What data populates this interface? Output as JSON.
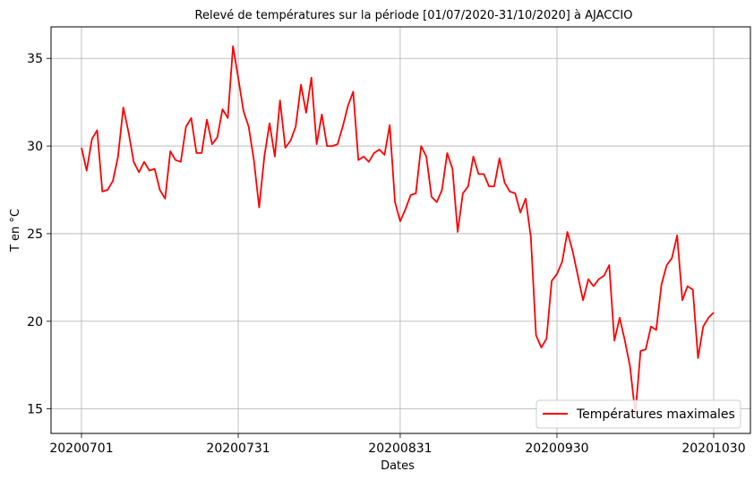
{
  "chart_data": {
    "type": "line",
    "title": "Relevé de températures sur la période [01/07/2020-31/10/2020] à AJACCIO",
    "xlabel": "Dates",
    "ylabel": "T en °C",
    "x_ticks": [
      "20200701",
      "20200731",
      "20200831",
      "20200930",
      "20201030"
    ],
    "y_ticks": [
      15,
      20,
      25,
      30,
      35
    ],
    "ylim": [
      13.6,
      36.8
    ],
    "grid": true,
    "legend_position": "bottom-right",
    "color": "#ff0000",
    "series": [
      {
        "name": "Températures maximales",
        "start_date": "20200701",
        "values": [
          29.9,
          28.6,
          30.4,
          30.9,
          27.4,
          27.5,
          28.0,
          29.4,
          32.2,
          30.8,
          29.1,
          28.5,
          29.1,
          28.6,
          28.7,
          27.5,
          27.0,
          29.7,
          29.2,
          29.1,
          31.1,
          31.6,
          29.6,
          29.6,
          31.5,
          30.1,
          30.5,
          32.1,
          31.6,
          35.7,
          33.9,
          32.0,
          31.1,
          29.2,
          26.5,
          29.4,
          31.3,
          29.4,
          32.6,
          29.9,
          30.3,
          31.1,
          33.5,
          31.9,
          33.9,
          30.1,
          31.8,
          30.0,
          30.0,
          30.1,
          31.1,
          32.3,
          33.1,
          29.2,
          29.4,
          29.1,
          29.6,
          29.8,
          29.5,
          31.2,
          26.8,
          25.7,
          26.4,
          27.2,
          27.3,
          30.0,
          29.4,
          27.1,
          26.8,
          27.5,
          29.6,
          28.7,
          25.1,
          27.3,
          27.7,
          29.4,
          28.4,
          28.4,
          27.7,
          27.7,
          29.3,
          27.9,
          27.4,
          27.3,
          26.2,
          27.0,
          24.8,
          19.2,
          18.5,
          19.0,
          22.3,
          22.7,
          23.4,
          25.1,
          24.0,
          22.6,
          21.2,
          22.4,
          22.0,
          22.4,
          22.6,
          23.2,
          18.9,
          20.2,
          18.9,
          17.4,
          14.7,
          18.3,
          18.4,
          19.7,
          19.5,
          22.1,
          23.2,
          23.6,
          24.9,
          21.2,
          22.0,
          21.8,
          17.9,
          19.7,
          20.2,
          20.5
        ]
      }
    ]
  }
}
